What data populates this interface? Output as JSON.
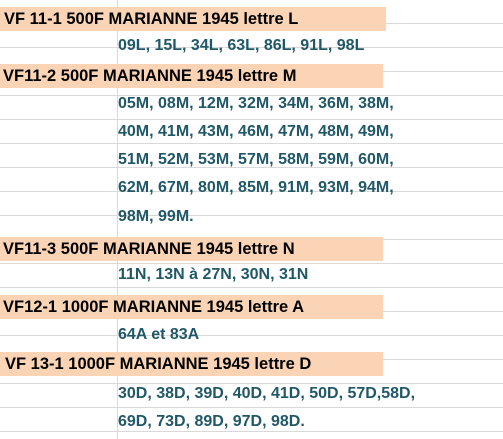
{
  "sections": [
    {
      "title": "VF 11-1  500F MARIANNE 1945  lettre L",
      "lines": [
        "09L, 15L, 34L, 63L, 86L, 91L, 98L"
      ]
    },
    {
      "title": "VF11-2  500F MARIANNE 1945  lettre M",
      "lines": [
        "05M, 08M, 12M, 32M, 34M, 36M, 38M,",
        "40M, 41M, 43M, 46M, 47M, 48M, 49M,",
        "51M, 52M, 53M, 57M, 58M, 59M, 60M,",
        "62M, 67M, 80M, 85M, 91M, 93M, 94M,",
        "98M, 99M."
      ]
    },
    {
      "title": "VF11-3  500F MARIANNE 1945 lettre N",
      "lines": [
        "11N, 13N à 27N, 30N, 31N"
      ]
    },
    {
      "title": "VF12-1  1000F MARIANNE 1945 lettre A",
      "lines": [
        "64A et 83A"
      ]
    },
    {
      "title": " VF 13-1  1000F MARIANNE 1945 lettre D",
      "lines": [
        "30D, 38D, 39D, 40D, 41D, 50D, 57D,58D,",
        "69D, 73D, 89D, 97D, 98D."
      ]
    }
  ],
  "colors": {
    "header_fill": "#fad4b5",
    "header_text": "#000000",
    "item_text": "#215868",
    "gridline": "#d9d9d9"
  }
}
